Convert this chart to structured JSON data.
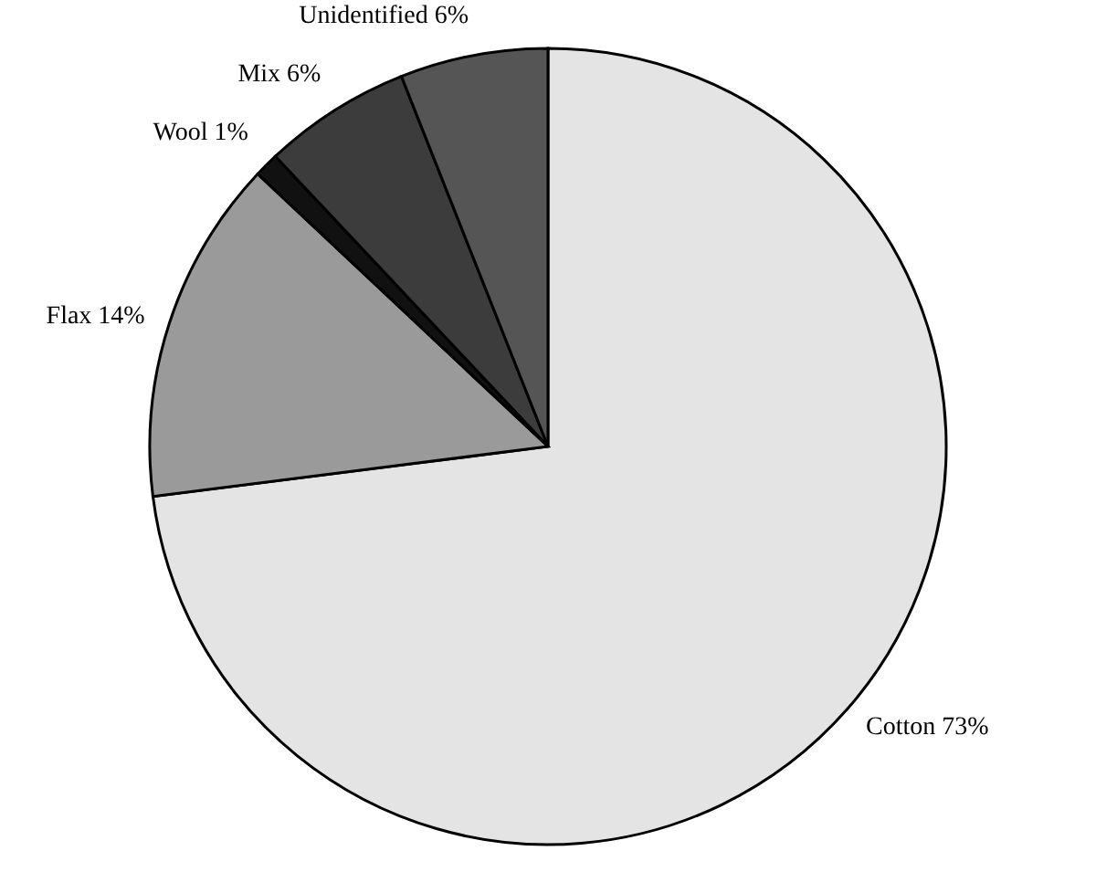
{
  "chart_data": {
    "type": "pie",
    "categories": [
      "Cotton",
      "Flax",
      "Wool",
      "Mix",
      "Unidentified"
    ],
    "values": [
      73,
      14,
      1,
      6,
      6
    ],
    "value_labels": [
      "73%",
      "14%",
      "1%",
      "6%",
      "6%"
    ],
    "colors": [
      "#e4e4e4",
      "#9a9a9a",
      "#111111",
      "#3c3c3c",
      "#555555"
    ]
  }
}
